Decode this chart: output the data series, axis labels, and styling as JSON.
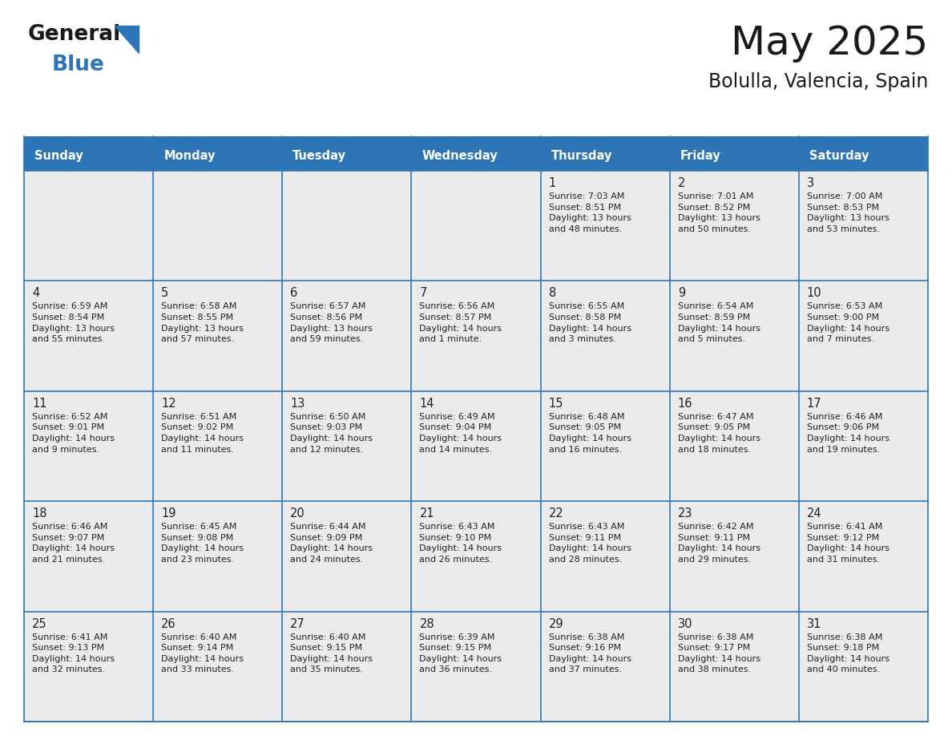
{
  "title": "May 2025",
  "subtitle": "Bolulla, Valencia, Spain",
  "header_bg": "#2E75B6",
  "header_text_color": "#FFFFFF",
  "days_of_week": [
    "Sunday",
    "Monday",
    "Tuesday",
    "Wednesday",
    "Thursday",
    "Friday",
    "Saturday"
  ],
  "cell_bg": "#EBEBEB",
  "cell_border_color": "#2E75B6",
  "text_color": "#222222",
  "title_color": "#1a1a1a",
  "logo_general_color": "#1a1a1a",
  "logo_blue_color": "#2E75B6",
  "logo_triangle_color": "#2E75B6",
  "calendar_data": [
    [
      {
        "day": "",
        "info": ""
      },
      {
        "day": "",
        "info": ""
      },
      {
        "day": "",
        "info": ""
      },
      {
        "day": "",
        "info": ""
      },
      {
        "day": "1",
        "info": "Sunrise: 7:03 AM\nSunset: 8:51 PM\nDaylight: 13 hours\nand 48 minutes."
      },
      {
        "day": "2",
        "info": "Sunrise: 7:01 AM\nSunset: 8:52 PM\nDaylight: 13 hours\nand 50 minutes."
      },
      {
        "day": "3",
        "info": "Sunrise: 7:00 AM\nSunset: 8:53 PM\nDaylight: 13 hours\nand 53 minutes."
      }
    ],
    [
      {
        "day": "4",
        "info": "Sunrise: 6:59 AM\nSunset: 8:54 PM\nDaylight: 13 hours\nand 55 minutes."
      },
      {
        "day": "5",
        "info": "Sunrise: 6:58 AM\nSunset: 8:55 PM\nDaylight: 13 hours\nand 57 minutes."
      },
      {
        "day": "6",
        "info": "Sunrise: 6:57 AM\nSunset: 8:56 PM\nDaylight: 13 hours\nand 59 minutes."
      },
      {
        "day": "7",
        "info": "Sunrise: 6:56 AM\nSunset: 8:57 PM\nDaylight: 14 hours\nand 1 minute."
      },
      {
        "day": "8",
        "info": "Sunrise: 6:55 AM\nSunset: 8:58 PM\nDaylight: 14 hours\nand 3 minutes."
      },
      {
        "day": "9",
        "info": "Sunrise: 6:54 AM\nSunset: 8:59 PM\nDaylight: 14 hours\nand 5 minutes."
      },
      {
        "day": "10",
        "info": "Sunrise: 6:53 AM\nSunset: 9:00 PM\nDaylight: 14 hours\nand 7 minutes."
      }
    ],
    [
      {
        "day": "11",
        "info": "Sunrise: 6:52 AM\nSunset: 9:01 PM\nDaylight: 14 hours\nand 9 minutes."
      },
      {
        "day": "12",
        "info": "Sunrise: 6:51 AM\nSunset: 9:02 PM\nDaylight: 14 hours\nand 11 minutes."
      },
      {
        "day": "13",
        "info": "Sunrise: 6:50 AM\nSunset: 9:03 PM\nDaylight: 14 hours\nand 12 minutes."
      },
      {
        "day": "14",
        "info": "Sunrise: 6:49 AM\nSunset: 9:04 PM\nDaylight: 14 hours\nand 14 minutes."
      },
      {
        "day": "15",
        "info": "Sunrise: 6:48 AM\nSunset: 9:05 PM\nDaylight: 14 hours\nand 16 minutes."
      },
      {
        "day": "16",
        "info": "Sunrise: 6:47 AM\nSunset: 9:05 PM\nDaylight: 14 hours\nand 18 minutes."
      },
      {
        "day": "17",
        "info": "Sunrise: 6:46 AM\nSunset: 9:06 PM\nDaylight: 14 hours\nand 19 minutes."
      }
    ],
    [
      {
        "day": "18",
        "info": "Sunrise: 6:46 AM\nSunset: 9:07 PM\nDaylight: 14 hours\nand 21 minutes."
      },
      {
        "day": "19",
        "info": "Sunrise: 6:45 AM\nSunset: 9:08 PM\nDaylight: 14 hours\nand 23 minutes."
      },
      {
        "day": "20",
        "info": "Sunrise: 6:44 AM\nSunset: 9:09 PM\nDaylight: 14 hours\nand 24 minutes."
      },
      {
        "day": "21",
        "info": "Sunrise: 6:43 AM\nSunset: 9:10 PM\nDaylight: 14 hours\nand 26 minutes."
      },
      {
        "day": "22",
        "info": "Sunrise: 6:43 AM\nSunset: 9:11 PM\nDaylight: 14 hours\nand 28 minutes."
      },
      {
        "day": "23",
        "info": "Sunrise: 6:42 AM\nSunset: 9:11 PM\nDaylight: 14 hours\nand 29 minutes."
      },
      {
        "day": "24",
        "info": "Sunrise: 6:41 AM\nSunset: 9:12 PM\nDaylight: 14 hours\nand 31 minutes."
      }
    ],
    [
      {
        "day": "25",
        "info": "Sunrise: 6:41 AM\nSunset: 9:13 PM\nDaylight: 14 hours\nand 32 minutes."
      },
      {
        "day": "26",
        "info": "Sunrise: 6:40 AM\nSunset: 9:14 PM\nDaylight: 14 hours\nand 33 minutes."
      },
      {
        "day": "27",
        "info": "Sunrise: 6:40 AM\nSunset: 9:15 PM\nDaylight: 14 hours\nand 35 minutes."
      },
      {
        "day": "28",
        "info": "Sunrise: 6:39 AM\nSunset: 9:15 PM\nDaylight: 14 hours\nand 36 minutes."
      },
      {
        "day": "29",
        "info": "Sunrise: 6:38 AM\nSunset: 9:16 PM\nDaylight: 14 hours\nand 37 minutes."
      },
      {
        "day": "30",
        "info": "Sunrise: 6:38 AM\nSunset: 9:17 PM\nDaylight: 14 hours\nand 38 minutes."
      },
      {
        "day": "31",
        "info": "Sunrise: 6:38 AM\nSunset: 9:18 PM\nDaylight: 14 hours\nand 40 minutes."
      }
    ]
  ]
}
